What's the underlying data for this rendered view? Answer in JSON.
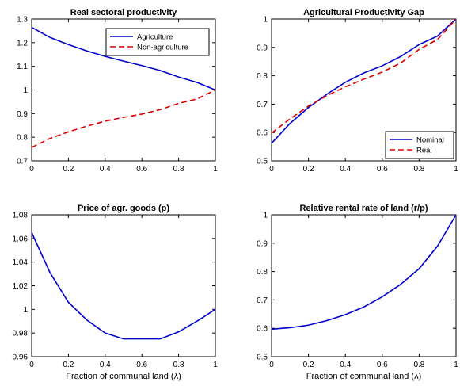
{
  "chart_data": [
    {
      "type": "line",
      "title": "Real sectoral productivity",
      "xlabel": "",
      "ylabel": "",
      "xlim": [
        0,
        1
      ],
      "ylim": [
        0.7,
        1.3
      ],
      "xticks": [
        "0",
        "0.2",
        "0.4",
        "0.6",
        "0.8",
        "1"
      ],
      "yticks": [
        "0.7",
        "0.8",
        "0.9",
        "1",
        "1.1",
        "1.2",
        "1.3"
      ],
      "legend_position": "top-right",
      "x": [
        0,
        0.1,
        0.2,
        0.3,
        0.4,
        0.5,
        0.6,
        0.7,
        0.8,
        0.9,
        1
      ],
      "series": [
        {
          "name": "Agriculture",
          "color": "#0000cc",
          "dash": "solid",
          "values": [
            1.265,
            1.222,
            1.192,
            1.165,
            1.142,
            1.122,
            1.103,
            1.082,
            1.055,
            1.032,
            1.0
          ]
        },
        {
          "name": "Non-agriculture",
          "color": "#dd0000",
          "dash": "dashed",
          "values": [
            0.757,
            0.795,
            0.823,
            0.847,
            0.868,
            0.884,
            0.898,
            0.917,
            0.943,
            0.962,
            1.0
          ]
        }
      ]
    },
    {
      "type": "line",
      "title": "Agricultural Productivity Gap",
      "xlabel": "",
      "ylabel": "",
      "xlim": [
        0,
        1
      ],
      "ylim": [
        0.5,
        1
      ],
      "xticks": [
        "0",
        "0.2",
        "0.4",
        "0.6",
        "0.8",
        "1"
      ],
      "yticks": [
        "0.5",
        "0.6",
        "0.7",
        "0.8",
        "0.9",
        "1"
      ],
      "legend_position": "bottom-right",
      "x": [
        0,
        0.1,
        0.2,
        0.3,
        0.4,
        0.5,
        0.6,
        0.7,
        0.8,
        0.9,
        1
      ],
      "series": [
        {
          "name": "Nominal",
          "color": "#0000cc",
          "dash": "solid",
          "values": [
            0.562,
            0.632,
            0.688,
            0.735,
            0.777,
            0.81,
            0.835,
            0.868,
            0.91,
            0.94,
            1.0
          ]
        },
        {
          "name": "Real",
          "color": "#dd0000",
          "dash": "dashed",
          "values": [
            0.598,
            0.648,
            0.693,
            0.73,
            0.761,
            0.788,
            0.813,
            0.845,
            0.893,
            0.928,
            1.0
          ]
        }
      ]
    },
    {
      "type": "line",
      "title": "Price of agr. goods (p)",
      "xlabel": "Fraction of communal land (λ)",
      "ylabel": "",
      "xlim": [
        0,
        1
      ],
      "ylim": [
        0.96,
        1.08
      ],
      "xticks": [
        "0",
        "0.2",
        "0.4",
        "0.6",
        "0.8",
        "1"
      ],
      "yticks": [
        "0.96",
        "0.98",
        "1",
        "1.02",
        "1.04",
        "1.06",
        "1.08"
      ],
      "x": [
        0,
        0.1,
        0.2,
        0.3,
        0.4,
        0.5,
        0.6,
        0.7,
        0.8,
        0.9,
        1
      ],
      "series": [
        {
          "color": "#0000cc",
          "dash": "solid",
          "values": [
            1.065,
            1.031,
            1.006,
            0.991,
            0.98,
            0.975,
            0.975,
            0.975,
            0.981,
            0.99,
            1.0
          ]
        }
      ]
    },
    {
      "type": "line",
      "title": "Relative rental rate of land (r/p)",
      "xlabel": "Fraction of communal land (λ)",
      "ylabel": "",
      "xlim": [
        0,
        1
      ],
      "ylim": [
        0.5,
        1
      ],
      "xticks": [
        "0",
        "0.2",
        "0.4",
        "0.6",
        "0.8",
        "1"
      ],
      "yticks": [
        "0.5",
        "0.6",
        "0.7",
        "0.8",
        "0.9",
        "1"
      ],
      "x": [
        0,
        0.1,
        0.2,
        0.3,
        0.4,
        0.5,
        0.6,
        0.7,
        0.8,
        0.9,
        1
      ],
      "series": [
        {
          "color": "#0000cc",
          "dash": "solid",
          "values": [
            0.597,
            0.602,
            0.611,
            0.627,
            0.648,
            0.675,
            0.711,
            0.755,
            0.81,
            0.89,
            1.0
          ]
        }
      ]
    }
  ]
}
